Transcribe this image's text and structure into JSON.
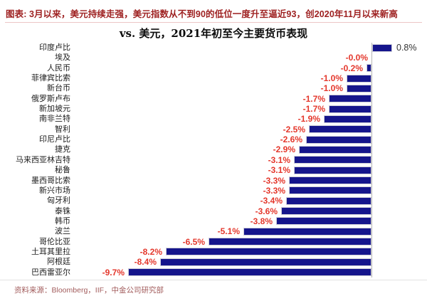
{
  "header": {
    "title": "图表: 3月以来，美元持续走强，美元指数从不到90的低位一度升至逼近93，创2020年11月以来新高"
  },
  "chart_data": {
    "type": "bar",
    "orientation": "horizontal",
    "title": "vs. 美元，2021年初至今主要货币表现",
    "categories": [
      "印度卢比",
      "埃及",
      "人民币",
      "菲律宾比索",
      "新台币",
      "俄罗斯卢布",
      "新加坡元",
      "南非兰特",
      "智利",
      "印尼卢比",
      "捷克",
      "马来西亚林吉特",
      "秘鲁",
      "墨西哥比索",
      "新兴市场",
      "匈牙利",
      "泰铢",
      "韩币",
      "波兰",
      "哥伦比亚",
      "土耳其里拉",
      "阿根廷",
      "巴西雷亚尔"
    ],
    "values": [
      0.8,
      -0.0,
      -0.2,
      -1.0,
      -1.0,
      -1.7,
      -1.7,
      -1.9,
      -2.5,
      -2.6,
      -2.9,
      -3.1,
      -3.1,
      -3.3,
      -3.3,
      -3.4,
      -3.6,
      -3.8,
      -5.1,
      -6.5,
      -8.2,
      -8.4,
      -9.7
    ],
    "value_labels": [
      "0.8%",
      "-0.0%",
      "-0.2%",
      "-1.0%",
      "-1.0%",
      "-1.7%",
      "-1.7%",
      "-1.9%",
      "-2.5%",
      "-2.6%",
      "-2.9%",
      "-3.1%",
      "-3.1%",
      "-3.3%",
      "-3.3%",
      "-3.4%",
      "-3.6%",
      "-3.8%",
      "-5.1%",
      "-6.5%",
      "-8.2%",
      "-8.4%",
      "-9.7%"
    ],
    "unit": "%",
    "xlim": [
      -10.5,
      2.2
    ],
    "grid": false,
    "legend": false,
    "bar_color": "#15158C",
    "negative_label_color": "#E4372C",
    "positive_label_color": "#333333"
  },
  "footer": {
    "source": "资料来源：Bloomberg，IIF，中金公司研究部"
  }
}
